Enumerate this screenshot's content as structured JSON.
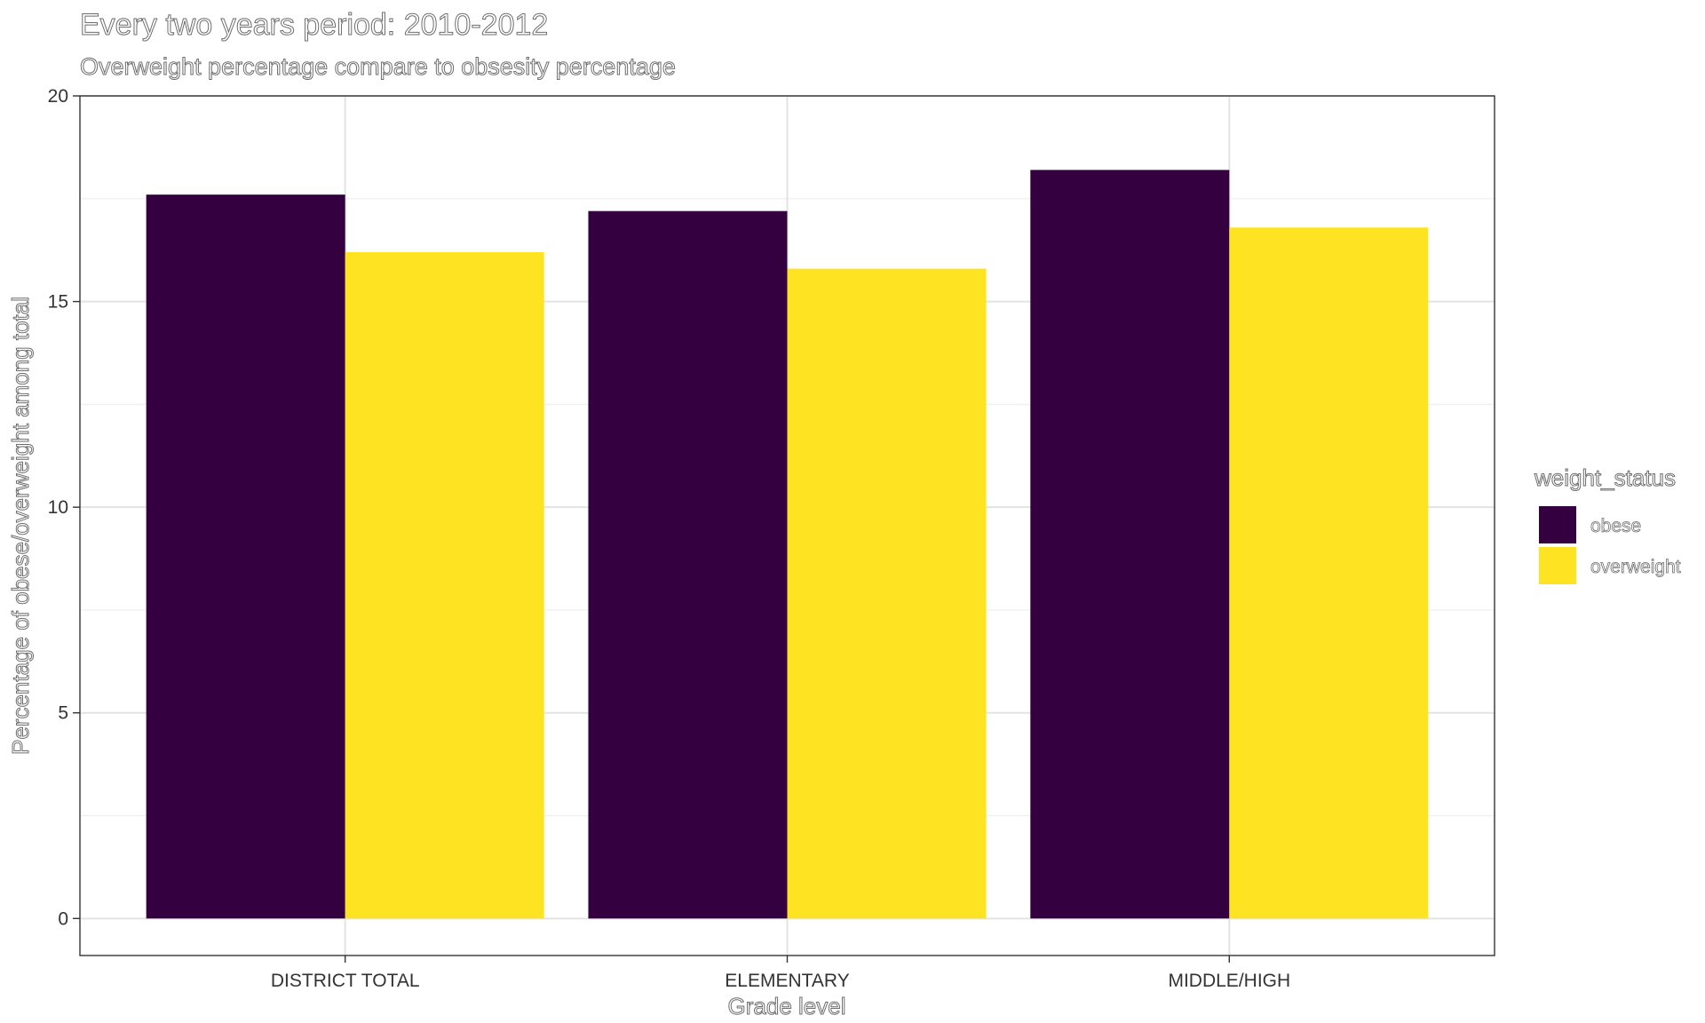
{
  "chart_data": {
    "type": "bar",
    "title": "Every two years period: 2010-2012",
    "subtitle": "Overweight percentage compare to obsesity percentage",
    "xlabel": "Grade level",
    "ylabel": "Percentage of obese/overweight among total",
    "categories": [
      "DISTRICT TOTAL",
      "ELEMENTARY",
      "MIDDLE/HIGH"
    ],
    "series": [
      {
        "name": "obese",
        "color": "#35003f",
        "values": [
          17.6,
          17.2,
          18.2
        ]
      },
      {
        "name": "overweight",
        "color": "#fde321",
        "values": [
          16.2,
          15.8,
          16.8
        ]
      }
    ],
    "ylim": [
      -0.9,
      20
    ],
    "yticks": [
      0,
      5,
      10,
      15,
      20
    ],
    "grid": true,
    "legend": {
      "title": "weight_status",
      "placement": "right"
    }
  }
}
